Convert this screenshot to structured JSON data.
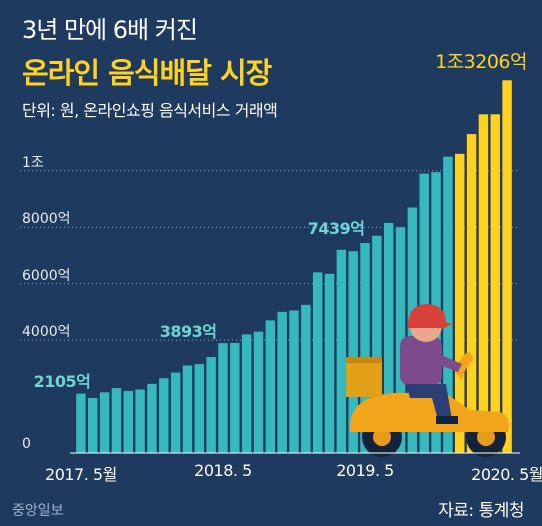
{
  "chart_data": {
    "type": "bar",
    "subtitle": "3년 만에 6배 커진",
    "title": "온라인 음식배달 시장",
    "unit_note": "단위: 원, 온라인쇼핑 음식서비스 거래액",
    "y_ticks": [
      {
        "value": 0,
        "label": "0"
      },
      {
        "value": 4000,
        "label": "4000억"
      },
      {
        "value": 6000,
        "label": "6000억"
      },
      {
        "value": 8000,
        "label": "8000억"
      },
      {
        "value": 10000,
        "label": "1조"
      }
    ],
    "ylim": [
      0,
      13500
    ],
    "categories": [
      "2017.5",
      "2017.6",
      "2017.7",
      "2017.8",
      "2017.9",
      "2017.10",
      "2017.11",
      "2017.12",
      "2018.1",
      "2018.2",
      "2018.3",
      "2018.4",
      "2018.5",
      "2018.6",
      "2018.7",
      "2018.8",
      "2018.9",
      "2018.10",
      "2018.11",
      "2018.12",
      "2019.1",
      "2019.2",
      "2019.3",
      "2019.4",
      "2019.5",
      "2019.6",
      "2019.7",
      "2019.8",
      "2019.9",
      "2019.10",
      "2019.11",
      "2019.12",
      "2020.1",
      "2020.2",
      "2020.3",
      "2020.4",
      "2020.5"
    ],
    "values": [
      2105,
      1950,
      2150,
      2300,
      2200,
      2250,
      2450,
      2650,
      2850,
      3100,
      3150,
      3400,
      3893,
      3900,
      4200,
      4300,
      4700,
      5000,
      5050,
      5250,
      6400,
      6350,
      7200,
      7150,
      7439,
      7700,
      8150,
      8000,
      8700,
      9900,
      9950,
      10500,
      10600,
      11300,
      12000,
      12000,
      13206
    ],
    "highlight_from": "2020.1",
    "colors": {
      "normal": "#35b9bc",
      "highlight": "#ffd21f",
      "background": "#1e3a5f"
    },
    "annotations": [
      {
        "category": "2017.5",
        "label": "2105억"
      },
      {
        "category": "2018.5",
        "label": "3893억"
      },
      {
        "category": "2019.5",
        "label": "7439억"
      },
      {
        "category": "2020.5",
        "label": "1조3206억"
      }
    ],
    "x_ticks": [
      {
        "category": "2017.5",
        "label": "2017. 5월"
      },
      {
        "category": "2018.5",
        "label": "2018. 5"
      },
      {
        "category": "2019.5",
        "label": "2019. 5"
      },
      {
        "category": "2020.5",
        "label": "2020. 5월"
      }
    ],
    "illustration": "delivery-scooter-rider"
  },
  "footer": {
    "logo": "중앙일보",
    "source": "자료: 통계청"
  }
}
